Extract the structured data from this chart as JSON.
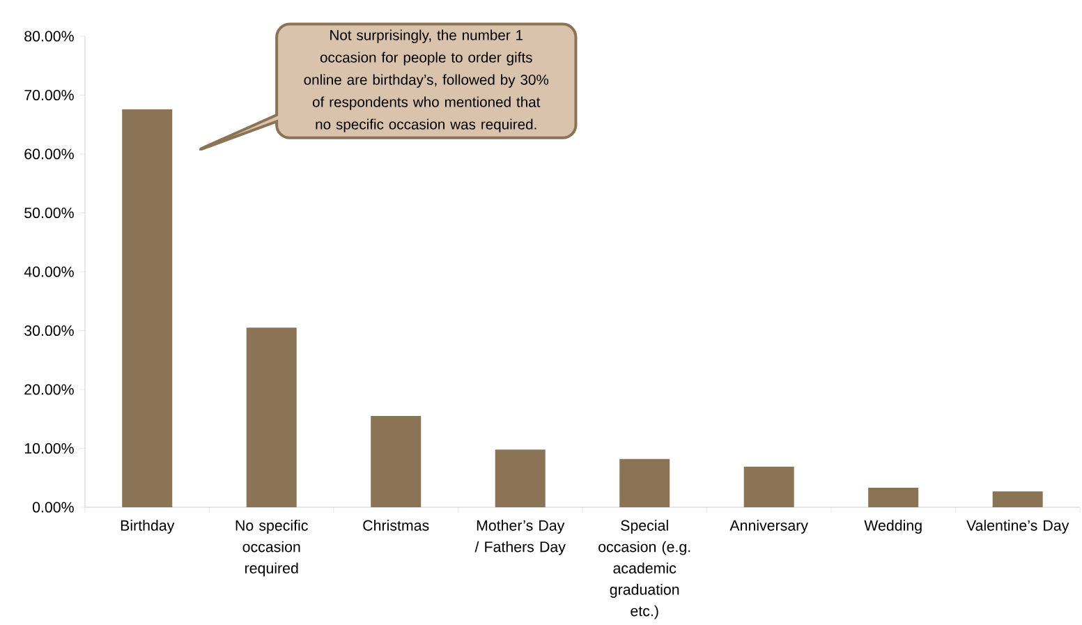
{
  "chart_data": {
    "type": "bar",
    "categories": [
      "Birthday",
      "No specific occasion required",
      "Christmas",
      "Mother’s Day / Fathers Day",
      "Special occasion (e.g. academic graduation etc.)",
      "Anniversary",
      "Wedding",
      "Valentine’s Day"
    ],
    "values": [
      67.6,
      30.5,
      15.5,
      9.8,
      8.2,
      6.9,
      3.3,
      2.7
    ],
    "color": "#8b7355",
    "ylim": [
      0,
      80
    ],
    "yticks": [
      {
        "value": 0,
        "label": "0.00%"
      },
      {
        "value": 10,
        "label": "10.00%"
      },
      {
        "value": 20,
        "label": "20.00%"
      },
      {
        "value": 30,
        "label": "30.00%"
      },
      {
        "value": 40,
        "label": "40.00%"
      },
      {
        "value": 50,
        "label": "50.00%"
      },
      {
        "value": 60,
        "label": "60.00%"
      },
      {
        "value": 70,
        "label": "70.00%"
      },
      {
        "value": 80,
        "label": "80.00%"
      }
    ],
    "annotations": [
      "Not surprisingly, the number 1 occasion for people to order gifts online are birthday’s, followed by 30% of respondents who mentioned that no specific occasion was required."
    ]
  }
}
